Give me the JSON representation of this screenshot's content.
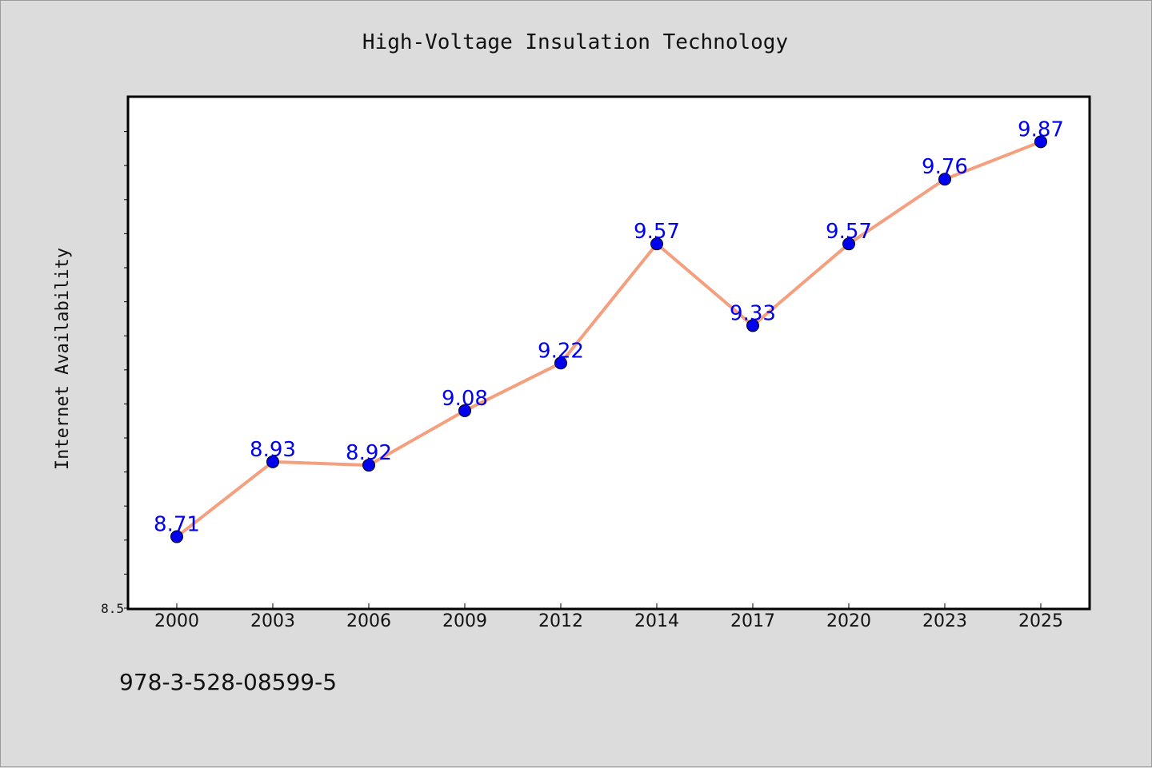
{
  "chart_data": {
    "type": "line",
    "title": "High-Voltage Insulation Technology",
    "xlabel": "",
    "ylabel": "Internet Availability",
    "categories": [
      "2000",
      "2003",
      "2006",
      "2009",
      "2012",
      "2014",
      "2017",
      "2020",
      "2023",
      "2025"
    ],
    "series": [
      {
        "values": [
          8.71,
          8.93,
          8.92,
          9.08,
          9.22,
          9.57,
          9.33,
          9.57,
          9.76,
          9.87
        ],
        "labels": [
          "8.71",
          "8.93",
          "8.92",
          "9.08",
          "9.22",
          "9.57",
          "9.33",
          "9.57",
          "9.76",
          "9.87"
        ],
        "line_color": "#f4a07f",
        "marker_color": "#0000ee",
        "label_color": "#0000ee"
      }
    ],
    "ylim": [
      8.5,
      10.0
    ],
    "yticks": [
      8.5
    ],
    "ytick_labels": [
      "8.5"
    ],
    "grid": false,
    "legend": "none"
  },
  "footer": {
    "isbn": "978-3-528-08599-5"
  },
  "colors": {
    "background": "#dcdcdc",
    "plot_background": "#ffffff"
  }
}
